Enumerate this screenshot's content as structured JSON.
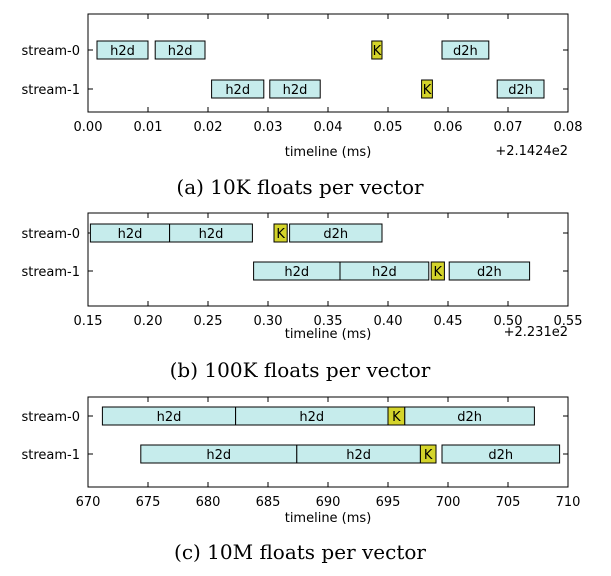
{
  "colors": {
    "transfer": "#c6ecec",
    "kernel": "#d4d42a",
    "stroke": "#000000"
  },
  "chart_data": [
    {
      "type": "gantt",
      "caption": "(a) 10K floats per vector",
      "xlabel": "timeline (ms)",
      "offset_label": "+2.1424e2",
      "xlim": [
        0.0,
        0.08
      ],
      "xticks": [
        "0.00",
        "0.01",
        "0.02",
        "0.03",
        "0.04",
        "0.05",
        "0.06",
        "0.07",
        "0.08"
      ],
      "streams": [
        {
          "name": "stream-0",
          "tasks": [
            {
              "label": "h2d",
              "kind": "transfer",
              "start": 0.0015,
              "end": 0.01
            },
            {
              "label": "h2d",
              "kind": "transfer",
              "start": 0.0112,
              "end": 0.0195
            },
            {
              "label": "K",
              "kind": "kernel",
              "start": 0.0473,
              "end": 0.049
            },
            {
              "label": "d2h",
              "kind": "transfer",
              "start": 0.059,
              "end": 0.0668
            }
          ]
        },
        {
          "name": "stream-1",
          "tasks": [
            {
              "label": "h2d",
              "kind": "transfer",
              "start": 0.0206,
              "end": 0.0293
            },
            {
              "label": "h2d",
              "kind": "transfer",
              "start": 0.0303,
              "end": 0.0387
            },
            {
              "label": "K",
              "kind": "kernel",
              "start": 0.0556,
              "end": 0.0574
            },
            {
              "label": "d2h",
              "kind": "transfer",
              "start": 0.0682,
              "end": 0.076
            }
          ]
        }
      ]
    },
    {
      "type": "gantt",
      "caption": "(b) 100K floats per vector",
      "xlabel": "timeline (ms)",
      "offset_label": "+2.231e2",
      "xlim": [
        0.15,
        0.55
      ],
      "xticks": [
        "0.15",
        "0.20",
        "0.25",
        "0.30",
        "0.35",
        "0.40",
        "0.45",
        "0.50",
        "0.55"
      ],
      "streams": [
        {
          "name": "stream-0",
          "tasks": [
            {
              "label": "h2d",
              "kind": "transfer",
              "start": 0.152,
              "end": 0.218
            },
            {
              "label": "h2d",
              "kind": "transfer",
              "start": 0.218,
              "end": 0.287
            },
            {
              "label": "K",
              "kind": "kernel",
              "start": 0.305,
              "end": 0.316
            },
            {
              "label": "d2h",
              "kind": "transfer",
              "start": 0.318,
              "end": 0.395
            }
          ]
        },
        {
          "name": "stream-1",
          "tasks": [
            {
              "label": "h2d",
              "kind": "transfer",
              "start": 0.288,
              "end": 0.36
            },
            {
              "label": "h2d",
              "kind": "transfer",
              "start": 0.36,
              "end": 0.434
            },
            {
              "label": "K",
              "kind": "kernel",
              "start": 0.436,
              "end": 0.447
            },
            {
              "label": "d2h",
              "kind": "transfer",
              "start": 0.451,
              "end": 0.518
            }
          ]
        }
      ]
    },
    {
      "type": "gantt",
      "caption": "(c) 10M floats per vector",
      "xlabel": "timeline (ms)",
      "offset_label": "",
      "xlim": [
        670,
        710
      ],
      "xticks": [
        "670",
        "675",
        "680",
        "685",
        "690",
        "695",
        "700",
        "705",
        "710"
      ],
      "streams": [
        {
          "name": "stream-0",
          "tasks": [
            {
              "label": "h2d",
              "kind": "transfer",
              "start": 671.2,
              "end": 682.3
            },
            {
              "label": "h2d",
              "kind": "transfer",
              "start": 682.3,
              "end": 695.0
            },
            {
              "label": "K",
              "kind": "kernel",
              "start": 695.0,
              "end": 696.4
            },
            {
              "label": "d2h",
              "kind": "transfer",
              "start": 696.4,
              "end": 707.2
            }
          ]
        },
        {
          "name": "stream-1",
          "tasks": [
            {
              "label": "h2d",
              "kind": "transfer",
              "start": 674.4,
              "end": 687.4
            },
            {
              "label": "h2d",
              "kind": "transfer",
              "start": 687.4,
              "end": 697.7
            },
            {
              "label": "K",
              "kind": "kernel",
              "start": 697.7,
              "end": 699.0
            },
            {
              "label": "d2h",
              "kind": "transfer",
              "start": 699.5,
              "end": 709.3
            }
          ]
        }
      ]
    }
  ]
}
